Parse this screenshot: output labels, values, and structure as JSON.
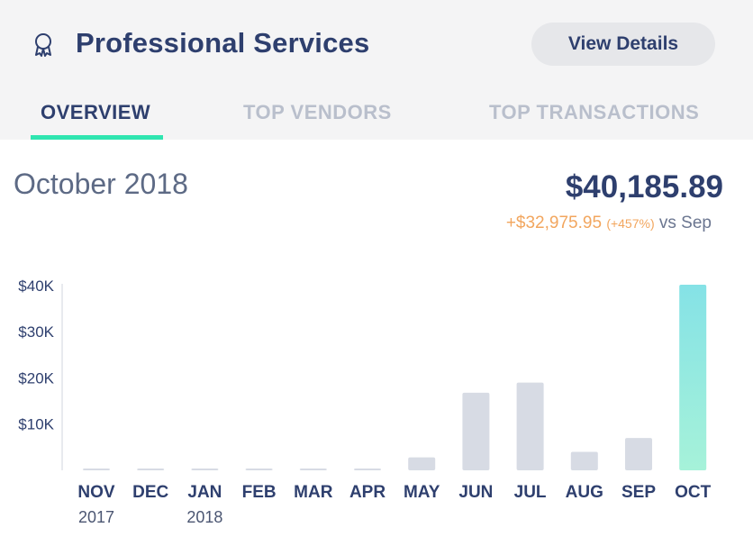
{
  "header": {
    "title": "Professional Services",
    "icon": "award-ribbon-icon",
    "view_details_label": "View Details"
  },
  "tabs": [
    {
      "label": "OVERVIEW",
      "active": true
    },
    {
      "label": "TOP VENDORS",
      "active": false
    },
    {
      "label": "TOP TRANSACTIONS",
      "active": false
    }
  ],
  "summary": {
    "period": "October 2018",
    "amount": "$40,185.89",
    "delta": "+$32,975.95",
    "delta_pct": "(+457%)",
    "comparison": "vs Sep"
  },
  "colors": {
    "bar": "#d7dbe4",
    "highlight_top": "#85e2e6",
    "highlight_bottom": "#a6f2d9",
    "accent": "#2fe5b0",
    "delta": "#f2a65e"
  },
  "chart_data": {
    "type": "bar",
    "categories": [
      "NOV",
      "DEC",
      "JAN",
      "FEB",
      "MAR",
      "APR",
      "MAY",
      "JUN",
      "JUL",
      "AUG",
      "SEP",
      "OCT"
    ],
    "category_sublabels": [
      "2017",
      "",
      "2018",
      "",
      "",
      "",
      "",
      "",
      "",
      "",
      "",
      ""
    ],
    "values": [
      0,
      0,
      0,
      0,
      0,
      0,
      2800,
      16800,
      19000,
      4000,
      7000,
      40185.89
    ],
    "highlight_index": 11,
    "yticks": [
      10000,
      20000,
      30000,
      40000
    ],
    "ytick_labels": [
      "$10K",
      "$20K",
      "$30K",
      "$40K"
    ],
    "ylim": [
      0,
      40185.89
    ],
    "title": "",
    "xlabel": "",
    "ylabel": "",
    "grid": false
  }
}
